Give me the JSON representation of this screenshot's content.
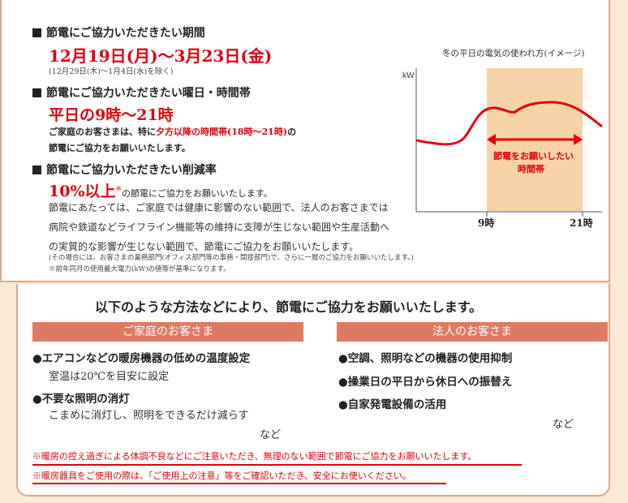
{
  "top": {
    "period": {
      "heading": "節電にご協力いただきたい期間",
      "dates": "12月19日(月)～3月23日(金)",
      "note": "(12月29日(木)～1月4日(水)を除く)"
    },
    "hours": {
      "heading": "節電にご協力いただきたい曜日・時間帯",
      "value": "平日の9時～21時",
      "desc_a": "ご家庭のお客さまは、特に",
      "desc_highlight": "夕方以降の時間帯(18時～21時)",
      "desc_b": "の",
      "desc_line2": "節電にご協力をお願いいたします。"
    },
    "reduction": {
      "heading": "節電にご協力いただきたい削減率",
      "value": "10%以上",
      "mark": "※",
      "suffix": "の節電にご協力をお願いいたします。",
      "body": "節電にあたっては、ご家庭では健康に影響のない範囲で、法人のお客さまでは病院や鉄道などライフライン機能等の維持に支障が生じない範囲や生産活動への実質的な影響が生じない範囲で、節電にご協力をお願いいたします。",
      "paren_note": "(その場合には、お客さまの業務部門(オフィス部門等の事務・間接部門)で、さらに一層のご協力をお願いいたします。)",
      "asterisk_note": "※前年同月の使用最大電力(kW)の値等が基準になります。"
    }
  },
  "chart": {
    "title": "冬の平日の電気の使われ方(イメージ)",
    "ylabel": "kW",
    "tick_9": "9時",
    "tick_21": "21時",
    "highlight_label_1": "節電をお願いしたい",
    "highlight_label_2": "時間帯",
    "colors": {
      "line": "#e3000f",
      "band": "#f6d3a6"
    }
  },
  "bottom": {
    "lead": "以下のような方法などにより、節電にご協力をお願いいたします。",
    "home": {
      "banner": "ご家庭のお客さま",
      "items": [
        {
          "label": "●エアコンなどの暖房機器の低めの温度設定",
          "sub": "室温は20℃を目安に設定"
        },
        {
          "label": "●不要な照明の消灯",
          "sub": "こまめに消灯し、照明をできるだけ減らす"
        }
      ],
      "etc": "など"
    },
    "corp": {
      "banner": "法人のお客さま",
      "items": [
        "●空調、照明などの機器の使用抑制",
        "●操業日の平日から休日への振替え",
        "●自家発電設備の活用"
      ],
      "etc": "など"
    },
    "note1": "※暖房の控え過ぎによる体調不良などにご注意いただき、無理のない範囲で節電にご協力をお願いいたします。",
    "note2": "※暖房器具をご使用の際は、「ご使用上の注意」等をご確認いただき、安全にお使いください。"
  }
}
